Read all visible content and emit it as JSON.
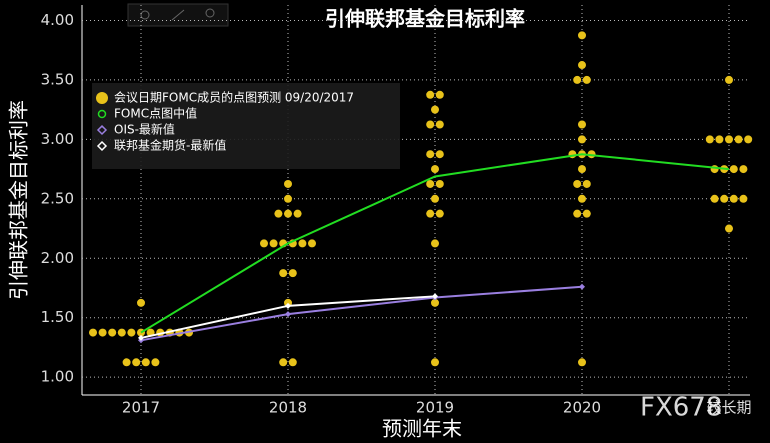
{
  "chart_data": {
    "type": "dot",
    "title": "引伸联邦基金目标利率",
    "y_label": "引伸联邦基金目标利率",
    "x_label": "预测年末",
    "watermark": "FX678",
    "categories": [
      "2017",
      "2018",
      "2019",
      "2020",
      "较长期"
    ],
    "ylim": [
      0.85,
      4.13
    ],
    "yticks": [
      {
        "value": 1,
        "label": "1.00"
      },
      {
        "value": 1.5,
        "label": "1.50"
      },
      {
        "value": 2,
        "label": "2.00"
      },
      {
        "value": 2.5,
        "label": "2.50"
      },
      {
        "value": 3,
        "label": "3.00"
      },
      {
        "value": 3.5,
        "label": "3.50"
      },
      {
        "value": 4,
        "label": "4.00"
      }
    ],
    "grid": true,
    "dots": {
      "name": "会议日期FOMC成员的点图预测 09/20/2017",
      "color": "#e8c21a",
      "values": [
        [
          1.125,
          1.125,
          1.125,
          1.125,
          1.375,
          1.375,
          1.375,
          1.375,
          1.375,
          1.375,
          1.375,
          1.375,
          1.375,
          1.375,
          1.375,
          1.625
        ],
        [
          1.125,
          1.125,
          1.625,
          1.875,
          1.875,
          2.125,
          2.125,
          2.125,
          2.125,
          2.125,
          2.125,
          2.375,
          2.375,
          2.375,
          2.5,
          2.625
        ],
        [
          1.125,
          1.625,
          2.125,
          2.375,
          2.375,
          2.5,
          2.625,
          2.625,
          2.75,
          2.875,
          2.875,
          3.125,
          3.125,
          3.25,
          3.375,
          3.375
        ],
        [
          1.125,
          2.375,
          2.375,
          2.5,
          2.625,
          2.625,
          2.75,
          2.875,
          2.875,
          2.875,
          3,
          3.125,
          3.5,
          3.5,
          3.625,
          3.875
        ],
        [
          2.25,
          2.5,
          2.5,
          2.5,
          2.5,
          2.75,
          2.75,
          2.75,
          2.75,
          3,
          3,
          3,
          3,
          3,
          3.5
        ]
      ]
    },
    "series": [
      {
        "name": "FOMC点图中值",
        "color": "#22dd22",
        "marker": "circle",
        "values": [
          1.375,
          2.125,
          2.6875,
          2.875,
          2.75
        ]
      },
      {
        "name": "OIS-最新值",
        "color": "#9a7fe0",
        "marker": "diamond",
        "values": [
          1.31,
          1.53,
          1.67,
          1.76,
          null
        ]
      },
      {
        "name": "联邦基金期货-最新值",
        "color": "#ffffff",
        "marker": "diamond",
        "values": [
          1.33,
          1.6,
          1.68,
          null,
          null
        ]
      }
    ]
  }
}
